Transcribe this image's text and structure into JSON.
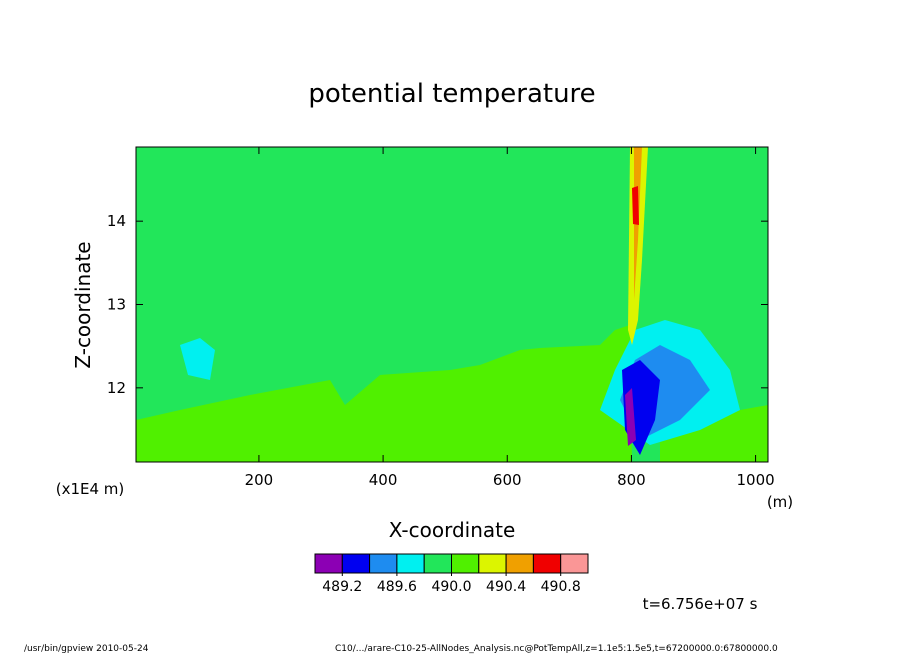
{
  "chart_data": {
    "type": "contour",
    "title": "potential temperature",
    "xlabel": "X-coordinate",
    "ylabel": "Z-coordinate",
    "xunit": "(m)",
    "yunit": "(x1E4 m)",
    "xlim": [
      2,
      1020
    ],
    "ylim": [
      11.11,
      14.89
    ],
    "xticks": [
      200,
      400,
      600,
      800,
      1000
    ],
    "yticks": [
      12,
      13,
      14
    ],
    "colors": [
      "#8c00b4",
      "#0000f0",
      "#1e8cf0",
      "#00f0f0",
      "#22e65a",
      "#50f000",
      "#dcf500",
      "#f0a000",
      "#f00000",
      "#fa9696"
    ],
    "colorbar_ticks": [
      489.2,
      489.6,
      {
        "value": 490.0,
        "label": "490.0"
      },
      490.4,
      490.8
    ],
    "colorbar_step": 0.2,
    "annotation": "t=6.756e+07 s",
    "footer_left": "/usr/bin/gpview   2010-05-24",
    "footer_right": "C10/.../arare-C10-25-AllNodes_Analysis.nc@PotTempAll,z=1.1e5:1.5e5,t=67200000.0:67800000.0"
  }
}
